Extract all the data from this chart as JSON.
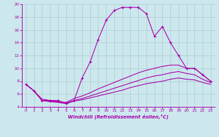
{
  "background_color": "#cce8ee",
  "grid_color": "#aacccc",
  "line_color": "#aa00aa",
  "xlim": [
    -0.5,
    23.5
  ],
  "ylim": [
    4,
    20
  ],
  "xticks": [
    0,
    1,
    2,
    3,
    4,
    5,
    6,
    7,
    8,
    9,
    10,
    11,
    12,
    13,
    14,
    15,
    16,
    17,
    18,
    19,
    20,
    21,
    22,
    23
  ],
  "yticks": [
    4,
    6,
    8,
    10,
    12,
    14,
    16,
    18,
    20
  ],
  "xlabel": "Windchill (Refroidissement éolien,°C)",
  "line1_x": [
    0,
    1,
    2,
    3,
    4,
    5,
    6,
    7,
    8,
    9,
    10,
    11,
    12,
    13,
    14,
    15,
    16,
    17,
    18,
    19,
    20,
    21,
    22,
    23
  ],
  "line1_y": [
    7.5,
    6.5,
    5.0,
    5.0,
    5.0,
    4.5,
    5.0,
    8.5,
    11.0,
    14.5,
    17.5,
    19.0,
    19.5,
    19.5,
    19.5,
    18.5,
    15.0,
    16.5,
    14.0,
    12.0,
    10.0,
    10.0,
    9.0,
    8.0
  ],
  "line2_x": [
    0,
    1,
    2,
    3,
    4,
    5,
    6,
    7,
    8,
    9,
    10,
    11,
    12,
    13,
    14,
    15,
    16,
    17,
    18,
    19,
    20,
    21,
    22,
    23
  ],
  "line2_y": [
    7.5,
    6.5,
    5.2,
    5.0,
    4.8,
    4.7,
    5.3,
    5.7,
    6.2,
    6.8,
    7.3,
    7.8,
    8.3,
    8.8,
    9.3,
    9.7,
    10.0,
    10.3,
    10.5,
    10.5,
    10.0,
    10.0,
    9.0,
    8.0
  ],
  "line3_x": [
    0,
    1,
    2,
    3,
    4,
    5,
    6,
    7,
    8,
    9,
    10,
    11,
    12,
    13,
    14,
    15,
    16,
    17,
    18,
    19,
    20,
    21,
    22,
    23
  ],
  "line3_y": [
    7.5,
    6.5,
    5.0,
    4.9,
    4.8,
    4.6,
    5.0,
    5.3,
    5.7,
    6.1,
    6.5,
    6.9,
    7.3,
    7.7,
    8.1,
    8.5,
    8.8,
    9.0,
    9.3,
    9.5,
    9.2,
    9.0,
    8.3,
    7.8
  ],
  "line4_x": [
    0,
    1,
    2,
    3,
    4,
    5,
    6,
    7,
    8,
    9,
    10,
    11,
    12,
    13,
    14,
    15,
    16,
    17,
    18,
    19,
    20,
    21,
    22,
    23
  ],
  "line4_y": [
    7.5,
    6.5,
    5.0,
    4.8,
    4.7,
    4.5,
    4.9,
    5.1,
    5.4,
    5.7,
    6.0,
    6.3,
    6.6,
    7.0,
    7.3,
    7.6,
    7.8,
    8.0,
    8.3,
    8.5,
    8.3,
    8.2,
    7.8,
    7.5
  ]
}
